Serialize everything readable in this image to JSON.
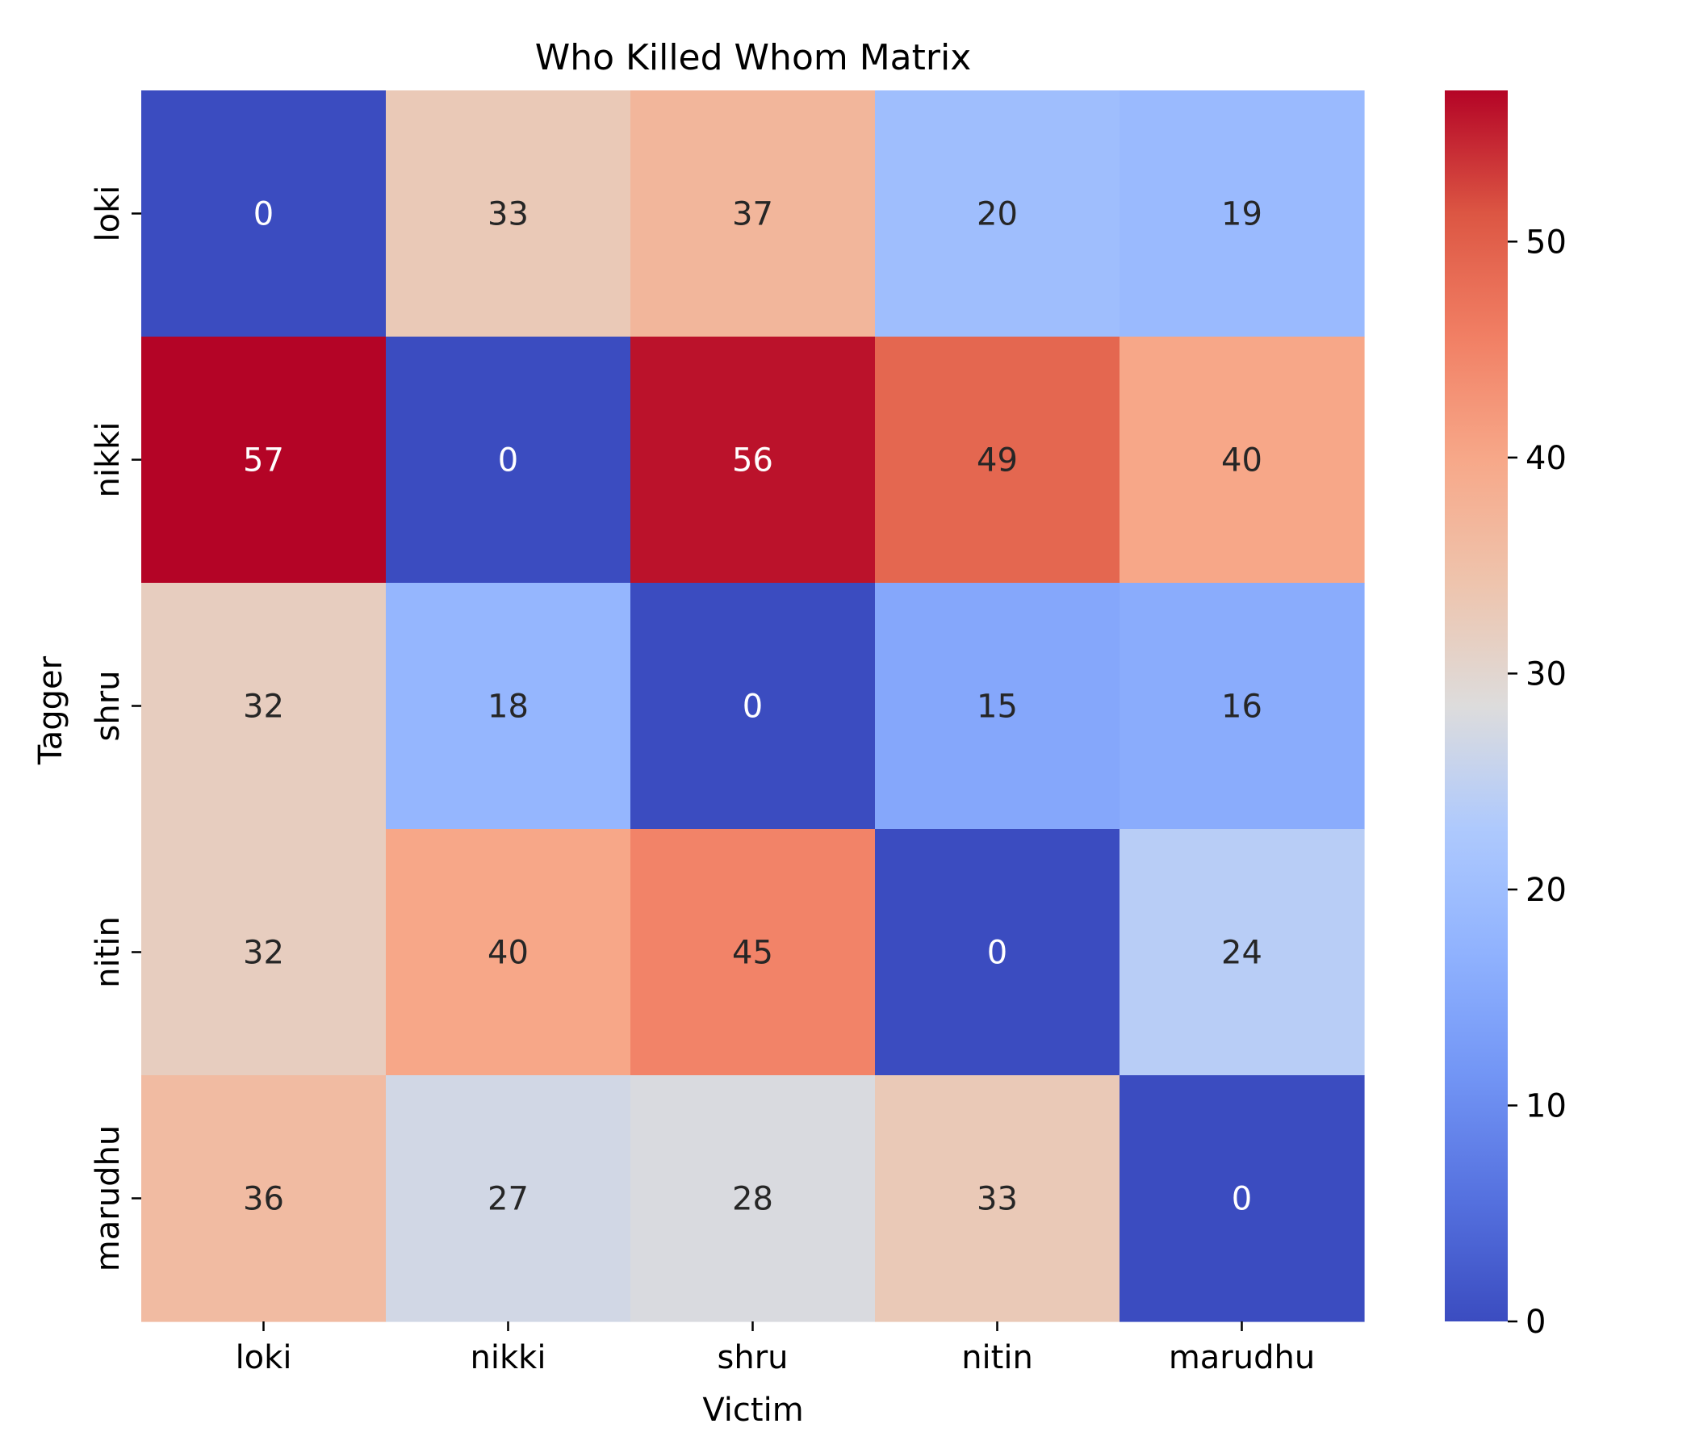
{
  "chart_data": {
    "type": "heatmap",
    "title": "Who Killed Whom Matrix",
    "xlabel": "Victim",
    "ylabel": "Tagger",
    "x_categories": [
      "loki",
      "nikki",
      "shru",
      "nitin",
      "marudhu"
    ],
    "y_categories": [
      "loki",
      "nikki",
      "shru",
      "nitin",
      "marudhu"
    ],
    "values": [
      [
        0,
        33,
        37,
        20,
        19
      ],
      [
        57,
        0,
        56,
        49,
        40
      ],
      [
        32,
        18,
        0,
        15,
        16
      ],
      [
        32,
        40,
        45,
        0,
        24
      ],
      [
        36,
        27,
        28,
        33,
        0
      ]
    ],
    "colormap": "coolwarm",
    "colorbar": {
      "range": [
        0,
        57
      ],
      "ticks": [
        0,
        10,
        20,
        30,
        40,
        50
      ],
      "low_color": "#3b4cc0",
      "mid_color": "#dddcdc",
      "high_color": "#b40426"
    },
    "annotations_shown": true
  }
}
